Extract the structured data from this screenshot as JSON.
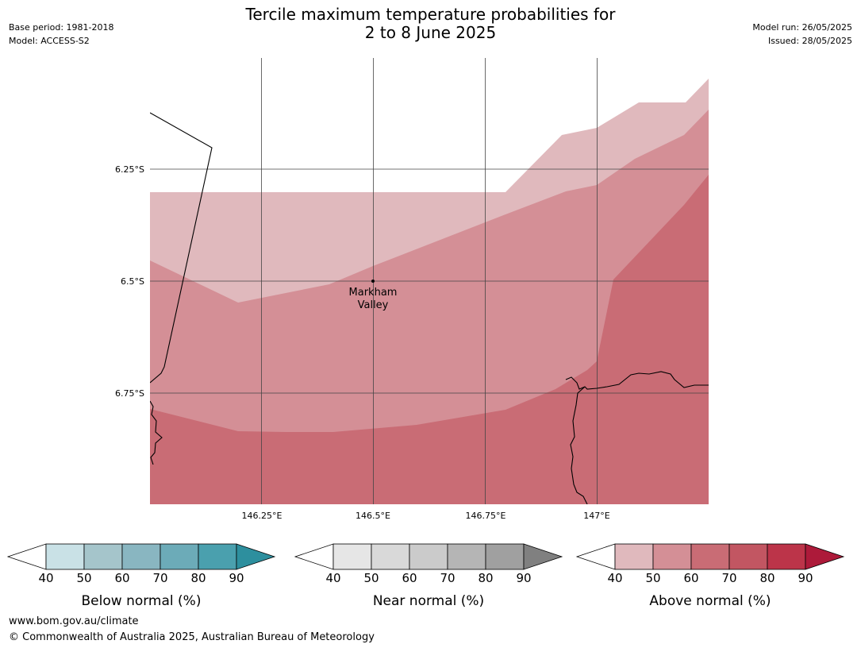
{
  "header": {
    "title_line1": "Tercile maximum temperature probabilities for",
    "title_line2": "2 to 8 June 2025",
    "base_period": "Base period: 1981-2018",
    "model": "Model: ACCESS-S2",
    "model_run": "Model run: 26/05/2025",
    "issued": "Issued: 28/05/2025"
  },
  "map": {
    "lat_labels": [
      "6.25°S",
      "6.5°S",
      "6.75°S"
    ],
    "lon_labels": [
      "146.25°E",
      "146.5°E",
      "146.75°E",
      "147°E"
    ],
    "place": {
      "name_line1": "Markham",
      "name_line2": "Valley",
      "lat": -6.5,
      "lon": 146.5
    },
    "category_shown": "Above normal",
    "zone_levels": [
      "40-50",
      "50-60",
      "60-70"
    ]
  },
  "legends": [
    {
      "label": "Below normal (%)",
      "ticks": [
        "40",
        "50",
        "60",
        "70",
        "80",
        "90"
      ],
      "colors": [
        "#ffffff",
        "#c9e1e6",
        "#a5c5cb",
        "#89b6c1",
        "#6cabb8",
        "#4aa0ae",
        "#2d8f9e"
      ]
    },
    {
      "label": "Near normal (%)",
      "ticks": [
        "40",
        "50",
        "60",
        "70",
        "80",
        "90"
      ],
      "colors": [
        "#ffffff",
        "#e6e6e6",
        "#d9d9d9",
        "#cbcbcb",
        "#b5b5b5",
        "#a0a0a0",
        "#808080"
      ]
    },
    {
      "label": "Above normal (%)",
      "ticks": [
        "40",
        "50",
        "60",
        "70",
        "80",
        "90"
      ],
      "colors": [
        "#ffffff",
        "#e0b9bd",
        "#d48f96",
        "#c96c75",
        "#c25662",
        "#bc3449",
        "#ad1a3a"
      ]
    }
  ],
  "footer": {
    "url": "www.bom.gov.au/climate",
    "copyright": "© Commonwealth of Australia 2025, Australian Bureau of Meteorology"
  }
}
